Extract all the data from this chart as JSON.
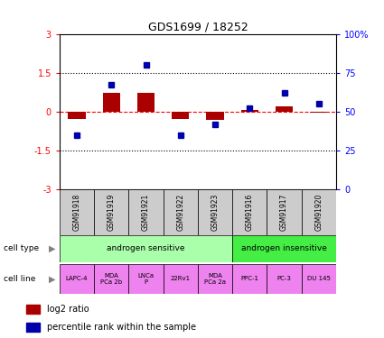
{
  "title": "GDS1699 / 18252",
  "samples": [
    "GSM91918",
    "GSM91919",
    "GSM91921",
    "GSM91922",
    "GSM91923",
    "GSM91916",
    "GSM91917",
    "GSM91920"
  ],
  "log2_ratio": [
    -0.28,
    0.72,
    0.72,
    -0.3,
    -0.32,
    0.05,
    0.2,
    -0.05
  ],
  "percentile_rank": [
    35,
    67,
    80,
    35,
    42,
    52,
    62,
    55
  ],
  "cell_types": [
    {
      "label": "androgen sensitive",
      "start": 0,
      "end": 5,
      "color": "#aaffaa"
    },
    {
      "label": "androgen insensitive",
      "start": 5,
      "end": 8,
      "color": "#44ee44"
    }
  ],
  "cell_lines": [
    {
      "label": "LAPC-4",
      "start": 0,
      "end": 1,
      "color": "#EE82EE"
    },
    {
      "label": "MDA\nPCa 2b",
      "start": 1,
      "end": 2,
      "color": "#EE82EE"
    },
    {
      "label": "LNCa\nP",
      "start": 2,
      "end": 3,
      "color": "#EE82EE"
    },
    {
      "label": "22Rv1",
      "start": 3,
      "end": 4,
      "color": "#EE82EE"
    },
    {
      "label": "MDA\nPCa 2a",
      "start": 4,
      "end": 5,
      "color": "#EE82EE"
    },
    {
      "label": "PPC-1",
      "start": 5,
      "end": 6,
      "color": "#EE82EE"
    },
    {
      "label": "PC-3",
      "start": 6,
      "end": 7,
      "color": "#EE82EE"
    },
    {
      "label": "DU 145",
      "start": 7,
      "end": 8,
      "color": "#EE82EE"
    }
  ],
  "bar_color": "#AA0000",
  "dot_color": "#0000AA",
  "ylim_left": [
    -3,
    3
  ],
  "ylim_right": [
    0,
    100
  ],
  "yticks_left": [
    -3,
    -1.5,
    0,
    1.5,
    3
  ],
  "yticks_right": [
    0,
    25,
    50,
    75,
    100
  ],
  "ytick_labels_left": [
    "-3",
    "-1.5",
    "0",
    "1.5",
    "3"
  ],
  "ytick_labels_right": [
    "0",
    "25",
    "50",
    "75",
    "100%"
  ],
  "hlines_dotted": [
    -1.5,
    1.5
  ],
  "hline_dashed": 0,
  "legend_log2": "log2 ratio",
  "legend_pct": "percentile rank within the sample",
  "sample_box_color": "#CCCCCC",
  "cell_type_label": "cell type",
  "cell_line_label": "cell line"
}
